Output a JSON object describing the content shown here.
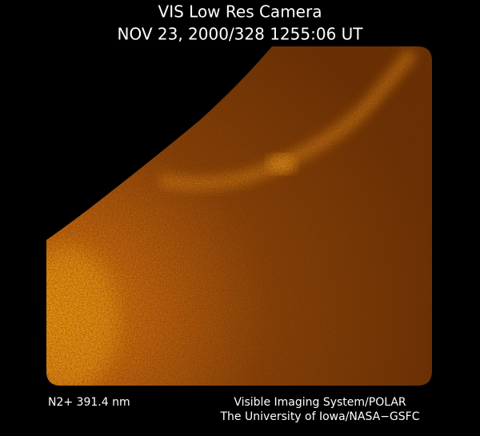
{
  "header": {
    "title": "VIS Low Res Camera",
    "timestamp": "NOV 23, 2000/328 1255:06 UT"
  },
  "footer": {
    "wavelength": "N2+ 391.4 nm",
    "instrument": "Visible Imaging System/POLAR",
    "institution": "The University of Iowa/NASA−GSFC"
  }
}
